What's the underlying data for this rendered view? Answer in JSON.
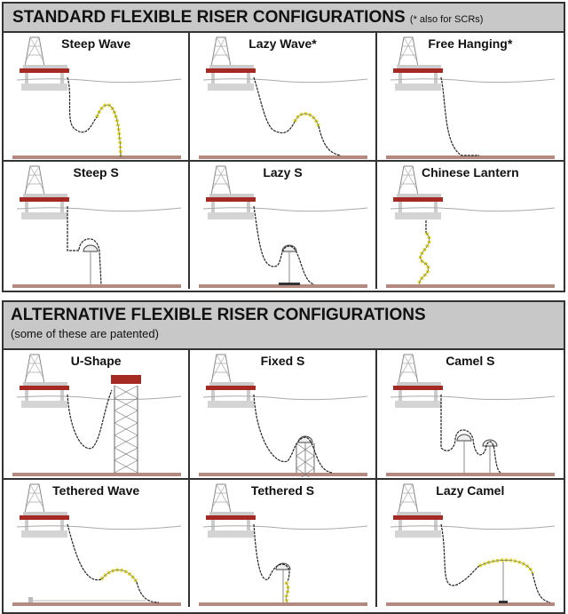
{
  "standard": {
    "title": "STANDARD FLEXIBLE RISER CONFIGURATIONS",
    "note": "(* also for SCRs)",
    "panels": [
      {
        "label": "Steep Wave"
      },
      {
        "label": "Lazy Wave*"
      },
      {
        "label": "Free Hanging*"
      },
      {
        "label": "Steep S"
      },
      {
        "label": "Lazy S"
      },
      {
        "label": "Chinese Lantern"
      }
    ]
  },
  "alternative": {
    "title": "ALTERNATIVE FLEXIBLE RISER CONFIGURATIONS",
    "subtitle": "(some of these are patented)",
    "panels": [
      {
        "label": "U-Shape"
      },
      {
        "label": "Fixed S"
      },
      {
        "label": "Camel S"
      },
      {
        "label": "Tethered Wave"
      },
      {
        "label": "Tethered S"
      },
      {
        "label": "Lazy Camel"
      }
    ]
  },
  "colors": {
    "deck": "#a52a24",
    "seabed": "#b48a80",
    "buoyancy": "#e8e030",
    "header": "#c8c8c8"
  }
}
